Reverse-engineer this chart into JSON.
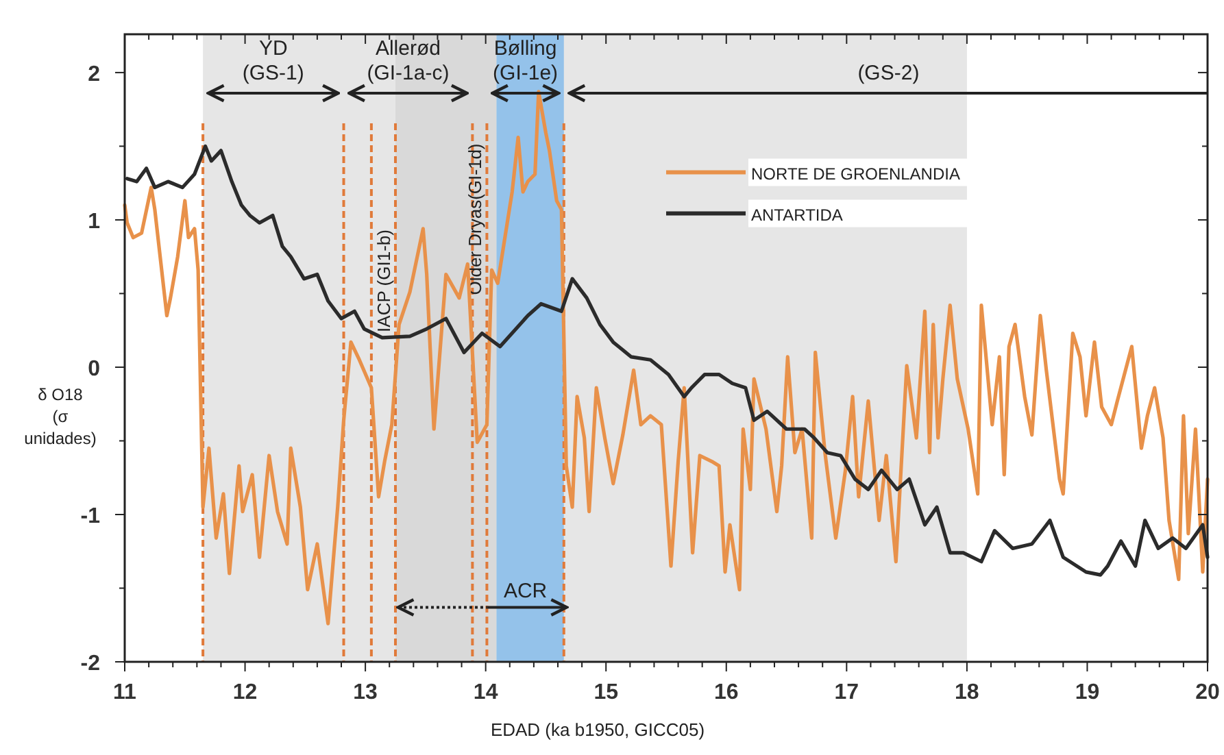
{
  "chart_data": {
    "type": "line",
    "xlabel": "EDAD (ka b1950, GICC05)",
    "ylabel": "δ O18 (σ unidades)",
    "xlim": [
      11,
      20
    ],
    "ylim": [
      -2,
      2.26
    ],
    "xticks": [
      11,
      {
        "value": 11.2,
        "label": null
      },
      {
        "value": 11.4,
        "label": null
      },
      {
        "value": 11.6,
        "label": null
      },
      {
        "value": 11.8,
        "label": null
      },
      12,
      {
        "value": 12.2,
        "label": null
      },
      {
        "value": 12.4,
        "label": null
      },
      {
        "value": 12.6,
        "label": null
      },
      {
        "value": 12.8,
        "label": null
      },
      13,
      {
        "value": 13.2,
        "label": null
      },
      {
        "value": 13.4,
        "label": null
      },
      {
        "value": 13.6,
        "label": null
      },
      {
        "value": 13.8,
        "label": null
      },
      14,
      {
        "value": 14.2,
        "label": null
      },
      {
        "value": 14.4,
        "label": null
      },
      {
        "value": 14.6,
        "label": null
      },
      {
        "value": 14.8,
        "label": null
      },
      15,
      {
        "value": 15.2,
        "label": null
      },
      {
        "value": 15.4,
        "label": null
      },
      {
        "value": 15.6,
        "label": null
      },
      {
        "value": 15.8,
        "label": null
      },
      16,
      {
        "value": 16.2,
        "label": null
      },
      {
        "value": 16.4,
        "label": null
      },
      {
        "value": 16.6,
        "label": null
      },
      {
        "value": 16.8,
        "label": null
      },
      17,
      {
        "value": 17.2,
        "label": null
      },
      {
        "value": 17.4,
        "label": null
      },
      {
        "value": 17.6,
        "label": null
      },
      {
        "value": 17.8,
        "label": null
      },
      18,
      {
        "value": 18.2,
        "label": null
      },
      {
        "value": 18.4,
        "label": null
      },
      {
        "value": 18.6,
        "label": null
      },
      {
        "value": 18.8,
        "label": null
      },
      19,
      {
        "value": 19.2,
        "label": null
      },
      {
        "value": 19.4,
        "label": null
      },
      {
        "value": 19.6,
        "label": null
      },
      {
        "value": 19.8,
        "label": null
      },
      20
    ],
    "yticks": [
      -2,
      {
        "value": -1.5,
        "label": null
      },
      -1,
      {
        "value": -0.5,
        "label": null
      },
      0,
      {
        "value": 0.5,
        "label": null
      },
      1,
      {
        "value": 1.5,
        "label": null
      },
      2
    ],
    "grid": false,
    "legend": "top right",
    "marker": "none",
    "line_style": "solid",
    "series": [
      {
        "name": "NORTE DE GROENLANDIA",
        "color": "#e8914a",
        "x": [
          11.0,
          11.02,
          11.07,
          11.14,
          11.22,
          11.25,
          11.35,
          11.38,
          11.44,
          11.5,
          11.53,
          11.58,
          11.61,
          11.65,
          11.7,
          11.76,
          11.82,
          11.87,
          11.95,
          11.98,
          12.06,
          12.12,
          12.2,
          12.27,
          12.35,
          12.38,
          12.46,
          12.52,
          12.6,
          12.69,
          12.77,
          12.82,
          12.88,
          12.95,
          13.05,
          13.11,
          13.16,
          13.22,
          13.28,
          13.37,
          13.48,
          13.51,
          13.57,
          13.67,
          13.78,
          13.85,
          13.93,
          14.01,
          14.05,
          14.1,
          14.16,
          14.22,
          14.27,
          14.31,
          14.35,
          14.41,
          14.44,
          14.5,
          14.53,
          14.59,
          14.63,
          14.67,
          14.72,
          14.76,
          14.82,
          14.86,
          14.92,
          14.99,
          15.06,
          15.14,
          15.23,
          15.29,
          15.37,
          15.46,
          15.54,
          15.6,
          15.65,
          15.72,
          15.78,
          15.88,
          15.94,
          15.99,
          16.03,
          16.11,
          16.14,
          16.2,
          16.23,
          16.33,
          16.42,
          16.46,
          16.51,
          16.57,
          16.63,
          16.71,
          16.74,
          16.82,
          16.91,
          16.99,
          17.05,
          17.1,
          17.18,
          17.27,
          17.33,
          17.41,
          17.5,
          17.58,
          17.65,
          17.69,
          17.72,
          17.76,
          17.8,
          17.86,
          17.92,
          18.01,
          18.09,
          18.12,
          18.21,
          18.27,
          18.31,
          18.35,
          18.4,
          18.48,
          18.54,
          18.61,
          18.66,
          18.77,
          18.8,
          18.88,
          18.94,
          18.99,
          19.06,
          19.12,
          19.2,
          19.25,
          19.37,
          19.45,
          19.5,
          19.56,
          19.63,
          19.68,
          19.76,
          19.8,
          19.84,
          19.9,
          19.96,
          20.0
        ],
        "values": [
          1.1,
          0.98,
          0.88,
          0.91,
          1.22,
          1.07,
          0.35,
          0.47,
          0.75,
          1.13,
          0.88,
          0.94,
          0.66,
          -0.95,
          -0.55,
          -1.16,
          -0.86,
          -1.4,
          -0.67,
          -0.98,
          -0.73,
          -1.29,
          -0.6,
          -0.98,
          -1.2,
          -0.55,
          -0.95,
          -1.51,
          -1.2,
          -1.74,
          -0.95,
          -0.36,
          0.17,
          0.05,
          -0.14,
          -0.88,
          -0.64,
          -0.39,
          0.29,
          0.51,
          0.94,
          0.63,
          -0.42,
          0.63,
          0.47,
          0.7,
          -0.51,
          -0.39,
          0.66,
          0.57,
          0.88,
          1.19,
          1.56,
          1.19,
          1.26,
          1.31,
          1.87,
          1.59,
          1.47,
          1.13,
          1.07,
          -0.67,
          -0.95,
          -0.2,
          -0.48,
          -0.98,
          -0.14,
          -0.48,
          -0.79,
          -0.46,
          -0.02,
          -0.39,
          -0.33,
          -0.39,
          -1.35,
          -0.64,
          -0.14,
          -1.26,
          -0.6,
          -0.64,
          -0.67,
          -1.39,
          -1.07,
          -1.51,
          -0.42,
          -0.83,
          -0.08,
          -0.42,
          -0.98,
          -0.67,
          0.07,
          -0.58,
          -0.42,
          -1.16,
          0.1,
          -0.58,
          -1.16,
          -0.7,
          -0.2,
          -0.88,
          -0.23,
          -1.04,
          -0.6,
          -1.32,
          0.01,
          -0.48,
          0.38,
          -0.58,
          0.29,
          -0.48,
          -0.08,
          0.42,
          -0.08,
          -0.42,
          -0.86,
          0.42,
          -0.39,
          0.07,
          -0.73,
          0.14,
          0.29,
          -0.2,
          -0.46,
          0.35,
          -0.02,
          -0.76,
          -0.86,
          0.23,
          0.07,
          -0.33,
          0.17,
          -0.27,
          -0.39,
          -0.23,
          0.14,
          -0.55,
          -0.33,
          -0.14,
          -0.48,
          -1.04,
          -1.44,
          -0.33,
          -1.13,
          -0.42,
          -1.39,
          -0.76
        ]
      },
      {
        "name": "ANTARTIDA",
        "color": "#2b2b2b",
        "x": [
          11.02,
          11.1,
          11.18,
          11.25,
          11.36,
          11.48,
          11.58,
          11.67,
          11.72,
          11.8,
          11.89,
          11.97,
          12.04,
          12.12,
          12.23,
          12.31,
          12.38,
          12.49,
          12.6,
          12.69,
          12.8,
          12.91,
          12.99,
          13.14,
          13.37,
          13.51,
          13.67,
          13.82,
          13.97,
          14.12,
          14.35,
          14.46,
          14.63,
          14.72,
          14.84,
          14.95,
          15.06,
          15.21,
          15.37,
          15.52,
          15.65,
          15.71,
          15.82,
          15.94,
          16.05,
          16.16,
          16.23,
          16.34,
          16.5,
          16.65,
          16.73,
          16.84,
          16.95,
          17.07,
          17.18,
          17.29,
          17.42,
          17.52,
          17.65,
          17.75,
          17.86,
          17.97,
          18.12,
          18.23,
          18.38,
          18.54,
          18.69,
          18.8,
          18.99,
          19.11,
          19.17,
          19.28,
          19.4,
          19.48,
          19.59,
          19.71,
          19.82,
          19.96,
          20.0
        ],
        "values": [
          1.28,
          1.26,
          1.35,
          1.22,
          1.26,
          1.22,
          1.31,
          1.5,
          1.4,
          1.47,
          1.26,
          1.1,
          1.03,
          0.98,
          1.03,
          0.82,
          0.75,
          0.6,
          0.63,
          0.45,
          0.33,
          0.38,
          0.26,
          0.2,
          0.21,
          0.26,
          0.33,
          0.1,
          0.23,
          0.14,
          0.35,
          0.43,
          0.38,
          0.6,
          0.47,
          0.29,
          0.17,
          0.07,
          0.05,
          -0.05,
          -0.2,
          -0.14,
          -0.05,
          -0.05,
          -0.11,
          -0.14,
          -0.36,
          -0.3,
          -0.42,
          -0.42,
          -0.48,
          -0.58,
          -0.6,
          -0.76,
          -0.83,
          -0.7,
          -0.83,
          -0.76,
          -1.07,
          -0.95,
          -1.26,
          -1.26,
          -1.32,
          -1.11,
          -1.23,
          -1.2,
          -1.04,
          -1.29,
          -1.39,
          -1.41,
          -1.35,
          -1.18,
          -1.35,
          -1.04,
          -1.23,
          -1.16,
          -1.23,
          -1.07,
          -1.29
        ]
      }
    ],
    "bands": [
      {
        "axis": "x",
        "from": 11.65,
        "to": 18.0,
        "label": null,
        "color": "#e6e6e6"
      },
      {
        "axis": "x",
        "from": 13.25,
        "to": 14.09,
        "label": null,
        "color": "#d9d9d9"
      },
      {
        "axis": "x",
        "from": 14.09,
        "to": 14.65,
        "label": null,
        "color": "#94c2ea"
      }
    ],
    "ref_lines": [
      {
        "axis": "x",
        "value": 11.65,
        "label": null,
        "color": "#e07a3a",
        "line_style": "dashed"
      },
      {
        "axis": "x",
        "value": 12.82,
        "label": null,
        "color": "#e07a3a",
        "line_style": "dashed"
      },
      {
        "axis": "x",
        "value": 13.05,
        "label": null,
        "color": "#e07a3a",
        "line_style": "dashed"
      },
      {
        "axis": "x",
        "value": 13.25,
        "label": "IACP (GI1-b)",
        "color": "#e07a3a",
        "line_style": "dashed"
      },
      {
        "axis": "x",
        "value": 13.89,
        "label": null,
        "color": "#e07a3a",
        "line_style": "dashed"
      },
      {
        "axis": "x",
        "value": 14.01,
        "label": "Older Dryas(GI-1d)",
        "color": "#e07a3a",
        "line_style": "dashed"
      },
      {
        "axis": "x",
        "value": 14.65,
        "label": null,
        "color": "#e07a3a",
        "line_style": "dashed"
      }
    ],
    "annotations": [
      "YD (GS-1)",
      "Allerød (GI-1a-c)",
      "Bølling (GI-1e)",
      "(GS-2)",
      {
        "text": "ACR",
        "x": 13.25,
        "y": -1.63
      }
    ]
  }
}
